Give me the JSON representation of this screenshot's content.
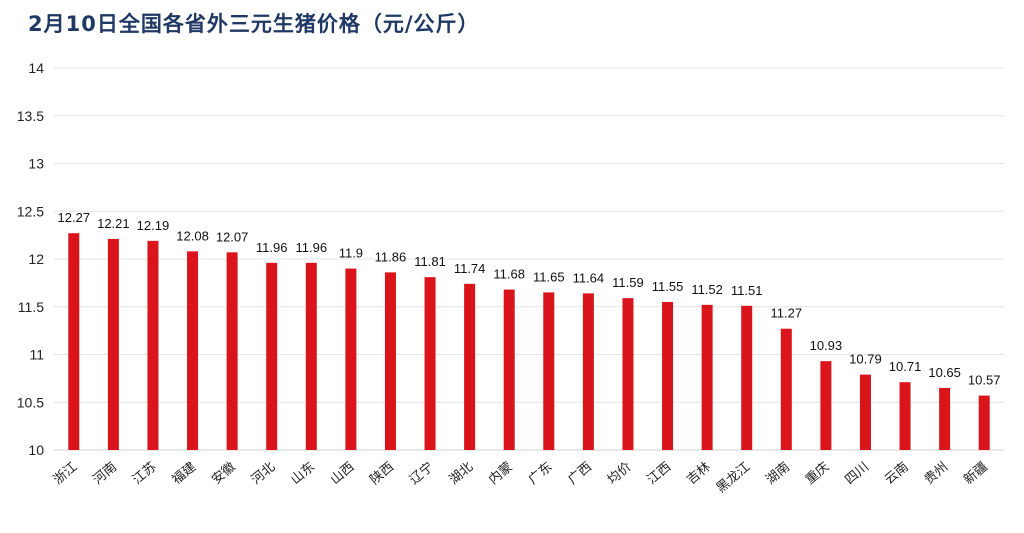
{
  "chart_data": {
    "type": "bar",
    "title": "2月10日全国各省外三元生猪价格（元/公斤）",
    "xlabel": "",
    "ylabel": "",
    "ylim": [
      10,
      14
    ],
    "yticks": [
      10,
      10.5,
      11,
      11.5,
      12,
      12.5,
      13,
      13.5,
      14
    ],
    "ytick_labels": [
      "10",
      "10.5",
      "11",
      "11.5",
      "12",
      "12.5",
      "13",
      "13.5",
      "14"
    ],
    "grid": true,
    "categories": [
      "浙江",
      "河南",
      "江苏",
      "福建",
      "安徽",
      "河北",
      "山东",
      "山西",
      "陕西",
      "辽宁",
      "湖北",
      "内蒙",
      "广东",
      "广西",
      "均价",
      "江西",
      "吉林",
      "黑龙江",
      "湖南",
      "重庆",
      "四川",
      "云南",
      "贵州",
      "新疆"
    ],
    "values": [
      12.27,
      12.21,
      12.19,
      12.08,
      12.07,
      11.96,
      11.96,
      11.9,
      11.86,
      11.81,
      11.74,
      11.68,
      11.65,
      11.64,
      11.59,
      11.55,
      11.52,
      11.51,
      11.27,
      10.93,
      10.79,
      10.71,
      10.65,
      10.57
    ],
    "value_labels": [
      "12.27",
      "12.21",
      "12.19",
      "12.08",
      "12.07",
      "11.96",
      "11.96",
      "11.9",
      "11.86",
      "11.81",
      "11.74",
      "11.68",
      "11.65",
      "11.64",
      "11.59",
      "11.55",
      "11.52",
      "11.51",
      "11.27",
      "10.93",
      "10.79",
      "10.71",
      "10.65",
      "10.57"
    ],
    "bar_color": "#d9141a",
    "title_color": "#1f3864"
  }
}
